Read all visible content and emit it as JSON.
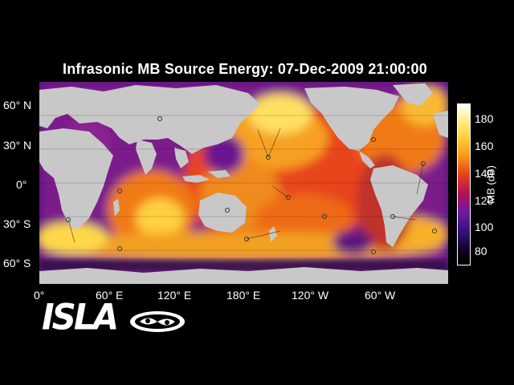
{
  "title": "Infrasonic MB Source Energy: 07-Dec-2009 21:00:00",
  "lat_labels": [
    "60° N",
    "30° N",
    "0°",
    "30° S",
    "60° S"
  ],
  "lon_labels": [
    "0°",
    "60° E",
    "120° E",
    "180° E",
    "120° W",
    "60° W"
  ],
  "colorbar": {
    "label": "MB (dB)",
    "ticks": [
      "180",
      "160",
      "140",
      "120",
      "100",
      "80"
    ],
    "range": [
      75,
      190
    ]
  },
  "logo": {
    "text": "ISLA"
  }
}
